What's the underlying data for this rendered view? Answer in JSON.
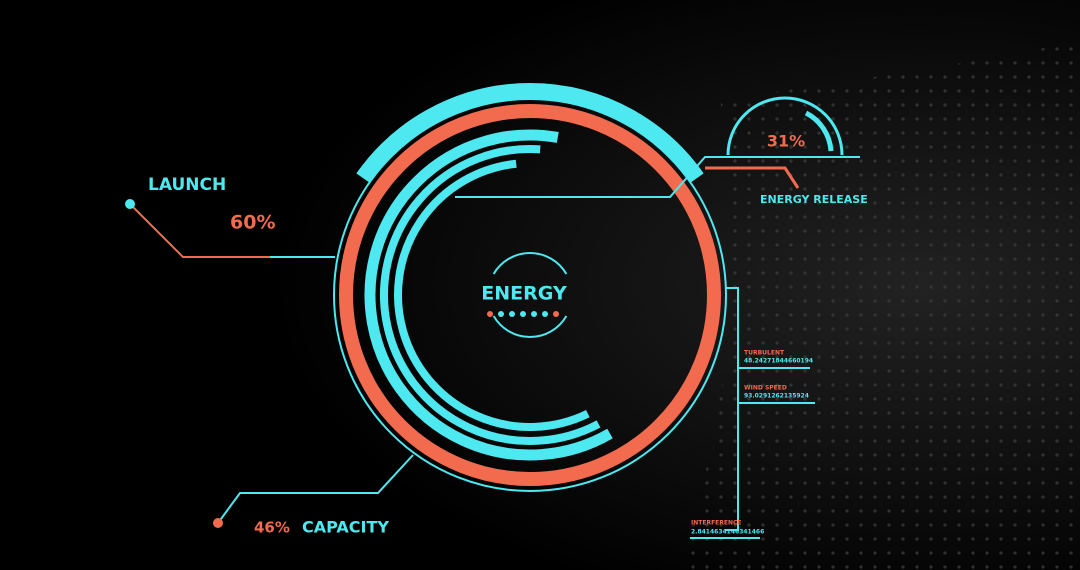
{
  "center": {
    "label": "ENERGY"
  },
  "launch": {
    "label": "LAUNCH",
    "value": "60%"
  },
  "release": {
    "label": "ENERGY RELEASE",
    "value": "31%"
  },
  "capacity": {
    "label": "CAPACITY",
    "value": "46%"
  },
  "readouts": [
    {
      "label": "TURBULENT",
      "value": "48.24271844660194"
    },
    {
      "label": "WIND SPEED",
      "value": "93.0291262135924"
    },
    {
      "label": "INTERFERENCE",
      "value": "2.8414634146341466"
    }
  ]
}
